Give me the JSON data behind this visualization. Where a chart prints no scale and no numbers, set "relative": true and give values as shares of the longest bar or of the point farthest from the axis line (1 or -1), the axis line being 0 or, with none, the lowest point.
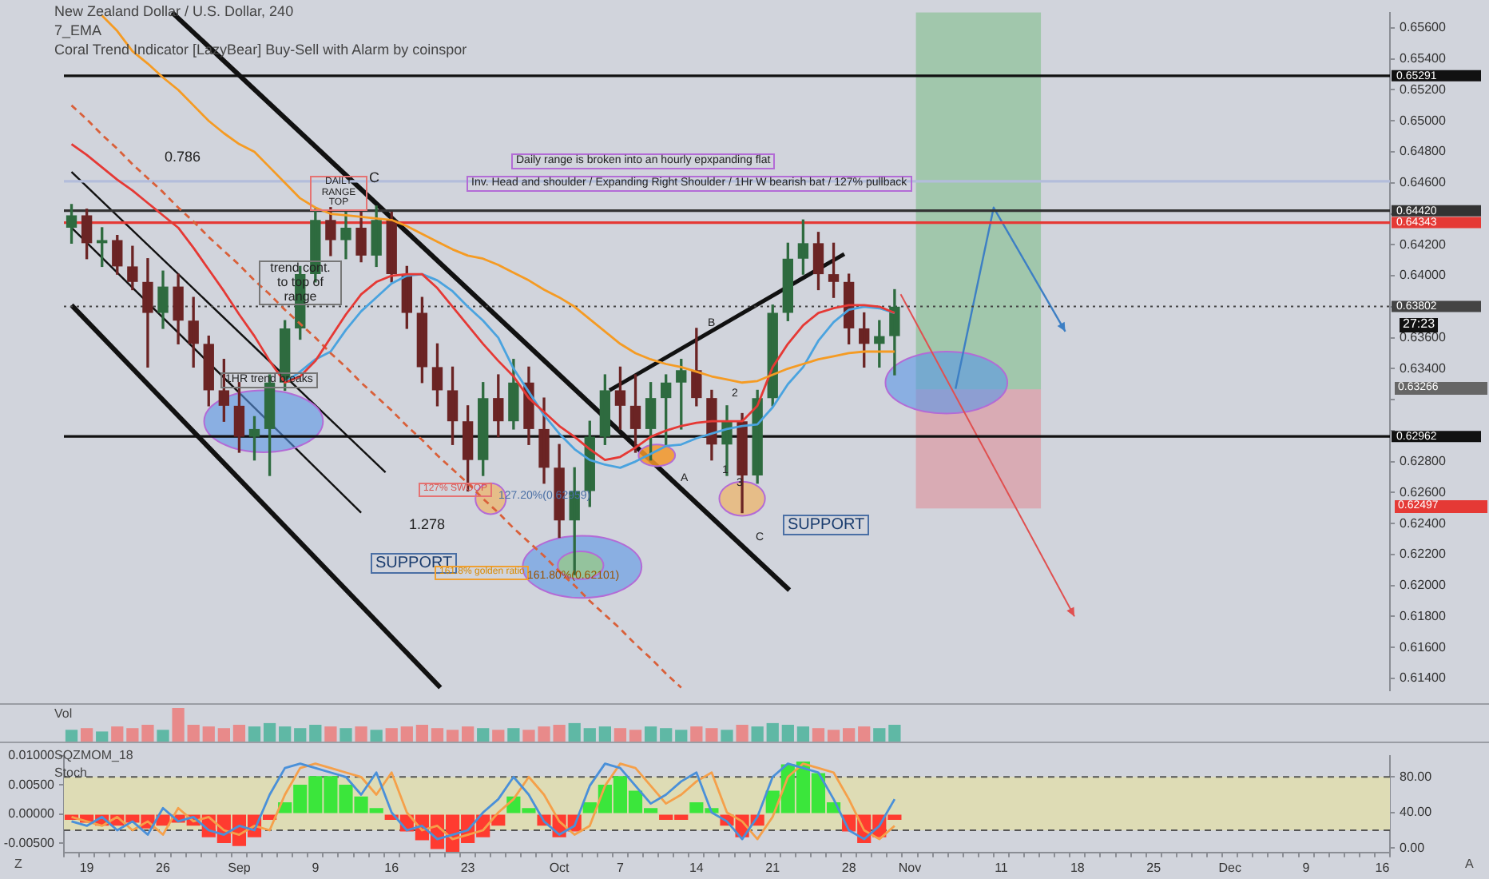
{
  "chart_data": [
    {
      "type": "candlestick",
      "tick_labels": "y",
      "grid": false,
      "legend": false,
      "marker": "none",
      "categories": [
        null,
        null,
        null,
        null,
        null,
        null,
        null,
        null,
        null,
        null,
        null,
        null,
        null,
        null,
        null,
        null,
        null,
        null,
        null,
        null,
        null,
        null,
        null,
        null,
        null,
        null,
        null,
        null,
        null,
        null,
        null,
        null,
        null,
        null,
        null,
        null,
        null,
        null,
        null,
        null,
        null,
        null,
        null,
        null,
        null,
        null,
        null,
        null,
        null,
        null,
        null,
        null,
        null,
        null,
        null,
        null,
        null,
        null,
        null,
        null,
        null,
        null,
        null,
        null,
        null,
        null,
        null,
        null,
        null,
        null,
        null,
        null,
        null,
        null,
        null,
        null,
        null,
        null,
        null,
        null,
        null,
        null,
        null,
        null,
        null,
        null,
        null
      ],
      "ohlc": [
        [
          0.6431,
          0.6446,
          0.6421,
          0.6439
        ],
        [
          0.6439,
          0.6443,
          0.6411,
          0.6421
        ],
        [
          0.6421,
          0.6431,
          0.6406,
          0.6423
        ],
        [
          0.6423,
          0.6426,
          0.6401,
          0.6406
        ],
        [
          0.6406,
          0.6419,
          0.6391,
          0.6396
        ],
        [
          0.6396,
          0.6411,
          0.6341,
          0.6376
        ],
        [
          0.6376,
          0.6403,
          0.6366,
          0.6393
        ],
        [
          0.6393,
          0.6401,
          0.6356,
          0.6371
        ],
        [
          0.6371,
          0.6386,
          0.6341,
          0.6356
        ],
        [
          0.6356,
          0.6361,
          0.6316,
          0.6326
        ],
        [
          0.6326,
          0.6346,
          0.6306,
          0.6316
        ],
        [
          0.6316,
          0.6331,
          0.6286,
          0.6296
        ],
        [
          0.6296,
          0.6309,
          0.6281,
          0.6301
        ],
        [
          0.6301,
          0.6336,
          0.6271,
          0.6331
        ],
        [
          0.6331,
          0.6371,
          0.6326,
          0.6366
        ],
        [
          0.6366,
          0.6406,
          0.6359,
          0.6401
        ],
        [
          0.6401,
          0.6443,
          0.6396,
          0.6436
        ],
        [
          0.6436,
          0.6444,
          0.6413,
          0.6423
        ],
        [
          0.6423,
          0.6441,
          0.6411,
          0.6431
        ],
        [
          0.6431,
          0.6441,
          0.6409,
          0.6413
        ],
        [
          0.6413,
          0.6445,
          0.6406,
          0.6436
        ],
        [
          0.6436,
          0.6441,
          0.6396,
          0.6401
        ],
        [
          0.6401,
          0.6406,
          0.6366,
          0.6376
        ],
        [
          0.6376,
          0.6386,
          0.6331,
          0.6341
        ],
        [
          0.6341,
          0.6356,
          0.6316,
          0.6326
        ],
        [
          0.6326,
          0.6341,
          0.6291,
          0.6306
        ],
        [
          0.6306,
          0.6316,
          0.6261,
          0.6281
        ],
        [
          0.6281,
          0.6331,
          0.6271,
          0.6321
        ],
        [
          0.6321,
          0.6336,
          0.6296,
          0.6306
        ],
        [
          0.6306,
          0.6346,
          0.6301,
          0.6331
        ],
        [
          0.6331,
          0.6341,
          0.6291,
          0.6301
        ],
        [
          0.6301,
          0.6321,
          0.6266,
          0.6276
        ],
        [
          0.6276,
          0.6291,
          0.6231,
          0.6242
        ],
        [
          0.6242,
          0.6276,
          0.6207,
          0.6261
        ],
        [
          0.6261,
          0.6306,
          0.6251,
          0.6296
        ],
        [
          0.6296,
          0.6336,
          0.6291,
          0.6326
        ],
        [
          0.6326,
          0.6341,
          0.6301,
          0.6316
        ],
        [
          0.6316,
          0.6336,
          0.6286,
          0.6301
        ],
        [
          0.6301,
          0.6331,
          0.6281,
          0.6321
        ],
        [
          0.6321,
          0.6336,
          0.6291,
          0.6331
        ],
        [
          0.6331,
          0.6346,
          0.6301,
          0.6339
        ],
        [
          0.6339,
          0.6366,
          0.6316,
          0.6321
        ],
        [
          0.6321,
          0.6326,
          0.6281,
          0.6291
        ],
        [
          0.6291,
          0.6316,
          0.6271,
          0.6306
        ],
        [
          0.6306,
          0.6311,
          0.6247,
          0.6271
        ],
        [
          0.6271,
          0.6326,
          0.6266,
          0.6321
        ],
        [
          0.6321,
          0.6381,
          0.6316,
          0.6376
        ],
        [
          0.6376,
          0.6421,
          0.6371,
          0.6411
        ],
        [
          0.6411,
          0.6436,
          0.6401,
          0.6421
        ],
        [
          0.6421,
          0.6428,
          0.6391,
          0.6401
        ],
        [
          0.6401,
          0.6421,
          0.6386,
          0.6396
        ],
        [
          0.6396,
          0.6401,
          0.6356,
          0.6366
        ],
        [
          0.6366,
          0.6376,
          0.6341,
          0.6356
        ],
        [
          0.6356,
          0.6371,
          0.6341,
          0.6361
        ],
        [
          0.6361,
          0.6391,
          0.6336,
          0.638
        ],
        null,
        null,
        null,
        null,
        null,
        null,
        null,
        null,
        null,
        null,
        null,
        null,
        null,
        null,
        null,
        null,
        null,
        null,
        null,
        null,
        null,
        null,
        null,
        null,
        null,
        null,
        null,
        null,
        null,
        null,
        null,
        null
      ],
      "colors": [
        "#2e6b3f",
        "#6b2424",
        "#2e6b3f",
        "#6b2424",
        "#6b2424",
        "#6b2424",
        "#2e6b3f",
        "#6b2424",
        "#6b2424",
        "#6b2424",
        "#6b2424",
        "#6b2424",
        "#2e6b3f",
        "#2e6b3f",
        "#2e6b3f",
        "#2e6b3f",
        "#2e6b3f",
        "#6b2424",
        "#2e6b3f",
        "#6b2424",
        "#2e6b3f",
        "#6b2424",
        "#6b2424",
        "#6b2424",
        "#6b2424",
        "#6b2424",
        "#6b2424",
        "#2e6b3f",
        "#6b2424",
        "#2e6b3f",
        "#6b2424",
        "#6b2424",
        "#6b2424",
        "#2e6b3f",
        "#2e6b3f",
        "#2e6b3f",
        "#6b2424",
        "#6b2424",
        "#2e6b3f",
        "#2e6b3f",
        "#2e6b3f",
        "#6b2424",
        "#6b2424",
        "#2e6b3f",
        "#6b2424",
        "#2e6b3f",
        "#2e6b3f",
        "#2e6b3f",
        "#2e6b3f",
        "#6b2424",
        "#6b2424",
        "#6b2424",
        "#6b2424",
        "#2e6b3f",
        "#2e6b3f",
        null,
        null,
        null,
        null,
        null,
        null,
        null,
        null,
        null,
        null,
        null,
        null,
        null,
        null,
        null,
        null,
        null,
        null,
        null,
        null,
        null,
        null,
        null,
        null,
        null,
        null,
        null,
        null,
        null,
        null,
        null,
        null
      ],
      "series": [
        {
          "type": "line",
          "color": "#f59b23",
          "values": [
            null,
            null,
            0.6568,
            0.6558,
            0.6545,
            0.6537,
            0.6528,
            0.652,
            0.651,
            0.65,
            0.6492,
            0.6485,
            0.648,
            0.647,
            0.646,
            0.645,
            0.6444,
            0.644,
            0.6439,
            0.6438,
            0.6437,
            0.6436,
            0.6432,
            0.6427,
            0.6422,
            0.6417,
            0.6413,
            0.6411,
            0.6407,
            0.6402,
            0.6397,
            0.6391,
            0.6386,
            0.638,
            0.6372,
            0.6364,
            0.6356,
            0.635,
            0.6346,
            0.6343,
            0.6341,
            0.6338,
            0.6335,
            0.6333,
            0.6331,
            0.6332,
            0.6336,
            0.634,
            0.6343,
            0.6346,
            0.6348,
            0.635,
            0.6351,
            0.6351,
            0.6351,
            null,
            null,
            null,
            null,
            null,
            null,
            null,
            null,
            null,
            null,
            null,
            null,
            null,
            null,
            null,
            null,
            null,
            null,
            null,
            null,
            null,
            null,
            null,
            null,
            null,
            null,
            null,
            null,
            null,
            null,
            null,
            null
          ]
        },
        {
          "type": "line",
          "color": "#e53935",
          "values": [
            0.6485,
            0.6478,
            0.647,
            0.6462,
            0.6455,
            0.6447,
            0.6439,
            0.6431,
            0.6418,
            0.6404,
            0.639,
            0.6375,
            0.6361,
            0.6345,
            0.6331,
            0.6335,
            0.6345,
            0.636,
            0.6375,
            0.6388,
            0.6396,
            0.64,
            0.6401,
            0.6401,
            0.6392,
            0.638,
            0.6368,
            0.6356,
            0.6345,
            0.6335,
            0.6321,
            0.6312,
            0.6303,
            0.6296,
            0.6288,
            0.6281,
            0.6283,
            0.6289,
            0.6296,
            0.63,
            0.6303,
            0.6305,
            0.6306,
            0.6306,
            0.6306,
            0.6316,
            0.6341,
            0.6356,
            0.6368,
            0.6376,
            0.6379,
            0.6381,
            0.6381,
            0.638,
            0.6376,
            null,
            null,
            null,
            null,
            null,
            null,
            null,
            null,
            null,
            null,
            null,
            null,
            null,
            null,
            null,
            null,
            null,
            null,
            null,
            null,
            null,
            null,
            null,
            null,
            null,
            null,
            null,
            null,
            null,
            null,
            null,
            null
          ]
        },
        {
          "type": "line",
          "color": "#d9603a",
          "line_style": "dashed",
          "values": [
            0.651,
            0.6501,
            0.6491,
            0.6482,
            0.6472,
            0.6463,
            0.6454,
            0.6444,
            0.6435,
            0.6425,
            0.6416,
            0.6407,
            0.6397,
            0.6388,
            0.6378,
            0.6369,
            0.636,
            0.635,
            0.6341,
            0.6331,
            0.6322,
            0.6313,
            0.6303,
            0.6294,
            0.6284,
            0.6275,
            0.6266,
            0.6256,
            0.6247,
            0.6237,
            0.6228,
            0.6219,
            0.6209,
            0.62,
            0.619,
            0.6181,
            0.6172,
            0.6162,
            0.6153,
            0.6143,
            0.6134,
            null,
            null,
            null,
            null,
            null,
            null,
            null,
            null,
            null,
            null,
            null,
            null,
            null,
            null,
            null,
            null,
            null,
            null,
            null,
            null,
            null,
            null,
            null,
            null,
            null,
            null,
            null,
            null,
            null,
            null,
            null,
            null,
            null,
            null,
            null,
            null,
            null,
            null,
            null,
            null,
            null,
            null,
            null,
            null,
            null,
            null
          ]
        },
        {
          "type": "line",
          "color": "#4aa3df",
          "values": [
            null,
            null,
            null,
            null,
            null,
            null,
            null,
            null,
            null,
            null,
            null,
            null,
            null,
            null,
            0.6331,
            0.6338,
            0.6346,
            0.6351,
            0.6365,
            0.6377,
            0.6386,
            0.6395,
            0.64,
            0.6401,
            0.6397,
            0.639,
            0.638,
            0.6371,
            0.636,
            0.634,
            0.6325,
            0.631,
            0.6298,
            0.6288,
            0.6281,
            0.6278,
            0.6276,
            0.628,
            0.6285,
            0.629,
            0.6291,
            0.6295,
            0.6298,
            0.6301,
            0.6303,
            0.6304,
            0.6315,
            0.633,
            0.6341,
            0.6358,
            0.637,
            0.6378,
            0.638,
            0.6379,
            0.6376,
            null,
            null,
            null,
            null,
            null,
            null,
            null,
            null,
            null,
            null,
            null,
            null,
            null,
            null,
            null,
            null,
            null,
            null,
            null,
            null,
            null,
            null,
            null,
            null,
            null,
            null,
            null,
            null,
            null,
            null,
            null,
            null
          ]
        }
      ],
      "ylim": [
        0.6132,
        0.657
      ],
      "yticks": [
        {
          "value": 0.614,
          "label": "0.61400"
        },
        {
          "value": 0.616,
          "label": "0.61600"
        },
        {
          "value": 0.618,
          "label": "0.61800"
        },
        {
          "value": 0.62,
          "label": "0.62000"
        },
        {
          "value": 0.622,
          "label": "0.62200"
        },
        {
          "value": 0.624,
          "label": "0.62400"
        },
        {
          "value": 0.626,
          "label": "0.62600"
        },
        {
          "value": 0.628,
          "label": "0.62800"
        },
        {
          "value": 0.63,
          "label": null
        },
        {
          "value": 0.632,
          "label": null
        },
        {
          "value": 0.634,
          "label": "0.63400"
        },
        {
          "value": 0.636,
          "label": "0.63600"
        },
        {
          "value": 0.638,
          "label": null
        },
        {
          "value": 0.64,
          "label": "0.64000"
        },
        {
          "value": 0.642,
          "label": "0.64200"
        },
        {
          "value": 0.644,
          "label": null
        },
        {
          "value": 0.646,
          "label": "0.64600"
        },
        {
          "value": 0.648,
          "label": "0.64800"
        },
        {
          "value": 0.65,
          "label": "0.65000"
        },
        {
          "value": 0.652,
          "label": "0.65200"
        },
        {
          "value": 0.654,
          "label": "0.65400"
        },
        {
          "value": 0.656,
          "label": "0.65600"
        }
      ],
      "ref_lines": [
        {
          "axis": "y",
          "value": 0.65291,
          "label": "0.65291",
          "color": "#111111"
        },
        {
          "axis": "y",
          "value": 0.6461,
          "color": "#b3bddb"
        },
        {
          "axis": "y",
          "value": 0.6442,
          "label": "0.64420",
          "color": "#333333"
        },
        {
          "axis": "y",
          "value": 0.64343,
          "label": "0.64343",
          "color": "#e53935"
        },
        {
          "axis": "y",
          "value": 0.63802,
          "label": "0.63802",
          "color": "#444444",
          "line_style": "dotted"
        },
        {
          "axis": "y",
          "value": 0.62962,
          "label": "0.62962",
          "color": "#111111"
        }
      ],
      "annotations": [
        "New Zealand Dollar / U.S. Dollar, 240",
        "7_EMA",
        "Coral Trend Indicator [LazyBear] Buy-Sell with Alarm by coinspor",
        "0.786",
        "DAILY RANGE TOP",
        "C",
        "trend cont. to top of range",
        "1HR trend breaks",
        "127% SWOOP",
        "127.20%(0.62959)",
        "1.278",
        "SUPPORT",
        "161.8% golden ratio",
        "161.80%(0.62101)",
        "Daily range is broken into an hourly epxpanding flat",
        "Inv. Head and shoulder / Expanding Right Shoulder / 1Hr W bearish bat / 127% pullback",
        "B",
        "2",
        "1",
        "3",
        "A",
        "C",
        "SUPPORT",
        "27:23",
        "0.63266",
        "0.62497"
      ]
    },
    {
      "type": "bar",
      "relative": true,
      "tick_labels": false,
      "grid": false,
      "legend": false,
      "categories": [
        null,
        null,
        null,
        null,
        null,
        null,
        null,
        null,
        null,
        null,
        null,
        null,
        null,
        null,
        null,
        null,
        null,
        null,
        null,
        null,
        null,
        null,
        null,
        null,
        null,
        null,
        null,
        null,
        null,
        null,
        null,
        null,
        null,
        null,
        null,
        null,
        null,
        null,
        null,
        null,
        null,
        null,
        null,
        null,
        null,
        null,
        null,
        null,
        null,
        null,
        null,
        null,
        null,
        null,
        null,
        null,
        null,
        null,
        null,
        null,
        null,
        null,
        null,
        null,
        null,
        null,
        null,
        null,
        null,
        null,
        null,
        null,
        null,
        null,
        null,
        null,
        null,
        null,
        null,
        null,
        null,
        null,
        null,
        null,
        null,
        null,
        null
      ],
      "values": [
        0.35,
        0.4,
        0.3,
        0.45,
        0.4,
        0.5,
        0.35,
        1,
        0.5,
        0.45,
        0.4,
        0.5,
        0.45,
        0.55,
        0.45,
        0.4,
        0.5,
        0.45,
        0.4,
        0.45,
        0.35,
        0.4,
        0.45,
        0.5,
        0.4,
        0.35,
        0.45,
        0.4,
        0.35,
        0.4,
        0.35,
        0.45,
        0.5,
        0.55,
        0.4,
        0.45,
        0.4,
        0.35,
        0.45,
        0.4,
        0.35,
        0.45,
        0.4,
        0.35,
        0.5,
        0.45,
        0.55,
        0.5,
        0.45,
        0.4,
        0.35,
        0.4,
        0.45,
        0.4,
        0.5,
        null,
        null,
        null,
        null,
        null,
        null,
        null,
        null,
        null,
        null,
        null,
        null,
        null,
        null,
        null,
        null,
        null,
        null,
        null,
        null,
        null,
        null,
        null,
        null,
        null,
        null,
        null,
        null,
        null,
        null,
        null,
        null
      ],
      "colors": [
        "#5fb8a5",
        "#e88a8a",
        "#5fb8a5",
        "#e88a8a",
        "#e88a8a",
        "#e88a8a",
        "#5fb8a5",
        "#e88a8a",
        "#e88a8a",
        "#e88a8a",
        "#e88a8a",
        "#e88a8a",
        "#5fb8a5",
        "#5fb8a5",
        "#5fb8a5",
        "#5fb8a5",
        "#5fb8a5",
        "#e88a8a",
        "#5fb8a5",
        "#e88a8a",
        "#5fb8a5",
        "#e88a8a",
        "#e88a8a",
        "#e88a8a",
        "#e88a8a",
        "#e88a8a",
        "#e88a8a",
        "#5fb8a5",
        "#e88a8a",
        "#5fb8a5",
        "#e88a8a",
        "#e88a8a",
        "#e88a8a",
        "#5fb8a5",
        "#5fb8a5",
        "#5fb8a5",
        "#e88a8a",
        "#e88a8a",
        "#5fb8a5",
        "#5fb8a5",
        "#5fb8a5",
        "#e88a8a",
        "#e88a8a",
        "#5fb8a5",
        "#e88a8a",
        "#5fb8a5",
        "#5fb8a5",
        "#5fb8a5",
        "#5fb8a5",
        "#e88a8a",
        "#e88a8a",
        "#e88a8a",
        "#e88a8a",
        "#5fb8a5",
        "#5fb8a5",
        null,
        null,
        null,
        null,
        null,
        null,
        null,
        null,
        null,
        null,
        null,
        null,
        null,
        null,
        null,
        null,
        null,
        null,
        null,
        null,
        null,
        null,
        null,
        null,
        null,
        null,
        null,
        null,
        null,
        null,
        null,
        null
      ],
      "annotations": [
        "Vol"
      ]
    },
    {
      "type": "bar",
      "grid": false,
      "legend": false,
      "marker": "none",
      "categories": [
        null,
        "19",
        null,
        null,
        null,
        null,
        "26",
        null,
        null,
        null,
        null,
        "Sep",
        null,
        null,
        null,
        null,
        "9",
        null,
        null,
        null,
        null,
        "16",
        null,
        null,
        null,
        null,
        "23",
        null,
        null,
        null,
        null,
        null,
        "Oct",
        null,
        null,
        null,
        "7",
        null,
        null,
        null,
        null,
        "14",
        null,
        null,
        null,
        null,
        "21",
        null,
        null,
        null,
        null,
        "28",
        null,
        null,
        null,
        "Nov",
        null,
        null,
        null,
        null,
        null,
        "11",
        null,
        null,
        null,
        null,
        "18",
        null,
        null,
        null,
        null,
        "25",
        null,
        null,
        null,
        null,
        "Dec",
        null,
        null,
        null,
        null,
        "9",
        null,
        null,
        null,
        null,
        "16"
      ],
      "series": [
        {
          "type": "bar",
          "values": [
            -0.001,
            -0.0015,
            -0.002,
            -0.002,
            -0.0015,
            -0.0025,
            -0.002,
            -0.0015,
            -0.002,
            -0.004,
            -0.005,
            -0.0055,
            -0.004,
            -0.001,
            0.002,
            0.005,
            0.0065,
            0.0065,
            0.005,
            0.003,
            0.001,
            -0.001,
            -0.003,
            -0.0045,
            -0.006,
            -0.0065,
            -0.005,
            -0.004,
            -0.002,
            0.003,
            0.001,
            -0.002,
            -0.004,
            -0.003,
            0.002,
            0.005,
            0.0065,
            0.004,
            0.001,
            -0.001,
            -0.001,
            0.002,
            0.001,
            -0.002,
            -0.004,
            -0.002,
            0.004,
            0.0085,
            0.009,
            0.007,
            0.002,
            -0.003,
            -0.005,
            -0.004,
            -0.001,
            null,
            null,
            null,
            null,
            null,
            null,
            null,
            null,
            null,
            null,
            null,
            null,
            null,
            null,
            null,
            null,
            null,
            null,
            null,
            null,
            null,
            null,
            null,
            null,
            null,
            null,
            null,
            null,
            null,
            null,
            null,
            null
          ],
          "colors": [
            "#ff3b30",
            "#ff3b30",
            "#ff3b30",
            "#ff3b30",
            "#ff3b30",
            "#ff3b30",
            "#ff3b30",
            "#ff3b30",
            "#ff3b30",
            "#ff3b30",
            "#ff3b30",
            "#ff3b30",
            "#ff3b30",
            "#ff3b30",
            "#3be63b",
            "#3be63b",
            "#3be63b",
            "#3be63b",
            "#3be63b",
            "#3be63b",
            "#3be63b",
            "#ff3b30",
            "#ff3b30",
            "#ff3b30",
            "#ff3b30",
            "#ff3b30",
            "#ff3b30",
            "#ff3b30",
            "#ff3b30",
            "#3be63b",
            "#3be63b",
            "#ff3b30",
            "#ff3b30",
            "#ff3b30",
            "#3be63b",
            "#3be63b",
            "#3be63b",
            "#3be63b",
            "#3be63b",
            "#ff3b30",
            "#ff3b30",
            "#3be63b",
            "#3be63b",
            "#ff3b30",
            "#ff3b30",
            "#ff3b30",
            "#3be63b",
            "#3be63b",
            "#3be63b",
            "#3be63b",
            "#3be63b",
            "#ff3b30",
            "#ff3b30",
            "#ff3b30",
            "#ff3b30",
            null,
            null,
            null,
            null,
            null,
            null,
            null,
            null,
            null,
            null,
            null,
            null,
            null,
            null,
            null,
            null,
            null,
            null,
            null,
            null,
            null,
            null,
            null,
            null,
            null,
            null,
            null,
            null,
            null,
            null,
            null,
            null
          ]
        },
        {
          "type": "line",
          "axis": "y2",
          "color": "#4a90d9",
          "values": [
            30,
            25,
            35,
            20,
            30,
            15,
            45,
            30,
            35,
            20,
            15,
            25,
            20,
            60,
            90,
            95,
            90,
            85,
            80,
            60,
            85,
            40,
            20,
            25,
            10,
            15,
            20,
            40,
            55,
            80,
            60,
            30,
            15,
            25,
            70,
            95,
            90,
            70,
            50,
            60,
            75,
            85,
            40,
            30,
            10,
            35,
            80,
            95,
            90,
            85,
            55,
            20,
            10,
            25,
            55,
            null,
            null,
            null,
            null,
            null,
            null,
            null,
            null,
            null,
            null,
            null,
            null,
            null,
            null,
            null,
            null,
            null,
            null,
            null,
            null,
            null,
            null,
            null,
            null,
            null,
            null,
            null,
            null,
            null,
            null,
            null,
            null
          ]
        },
        {
          "type": "line",
          "axis": "y2",
          "color": "#f5a04a",
          "values": [
            35,
            30,
            25,
            35,
            20,
            30,
            15,
            45,
            30,
            35,
            20,
            15,
            25,
            20,
            60,
            90,
            95,
            90,
            85,
            80,
            60,
            85,
            40,
            20,
            25,
            10,
            15,
            20,
            40,
            55,
            80,
            60,
            30,
            15,
            25,
            70,
            95,
            90,
            70,
            50,
            60,
            75,
            85,
            40,
            30,
            10,
            35,
            80,
            95,
            90,
            85,
            55,
            20,
            10,
            25,
            null,
            null,
            null,
            null,
            null,
            null,
            null,
            null,
            null,
            null,
            null,
            null,
            null,
            null,
            null,
            null,
            null,
            null,
            null,
            null,
            null,
            null,
            null,
            null,
            null,
            null,
            null,
            null,
            null,
            null,
            null,
            null
          ]
        }
      ],
      "ylim": [
        -0.0066,
        0.01
      ],
      "yticks": [
        {
          "value": -0.005,
          "label": "-0.00500"
        },
        {
          "value": 0,
          "label": "0.00000"
        },
        {
          "value": 0.005,
          "label": "0.00500"
        },
        {
          "value": 0.01,
          "label": "0.01000"
        }
      ],
      "y2lim": [
        -5,
        104
      ],
      "y2ticks": [
        {
          "value": 0,
          "label": "0.00"
        },
        {
          "value": 40,
          "label": "40.00"
        },
        {
          "value": 80,
          "label": "80.00"
        }
      ],
      "bands": [
        {
          "axis": "y2",
          "from": 20,
          "to": 80,
          "color": "#dedcb5"
        }
      ],
      "ref_lines": [
        {
          "axis": "y2",
          "value": 80,
          "color": "#555555",
          "line_style": "dashed"
        },
        {
          "axis": "y2",
          "value": 20,
          "color": "#555555",
          "line_style": "dashed"
        }
      ],
      "annotations": [
        "SQZMOM_18",
        "Stoch",
        "Z",
        "A"
      ]
    }
  ]
}
